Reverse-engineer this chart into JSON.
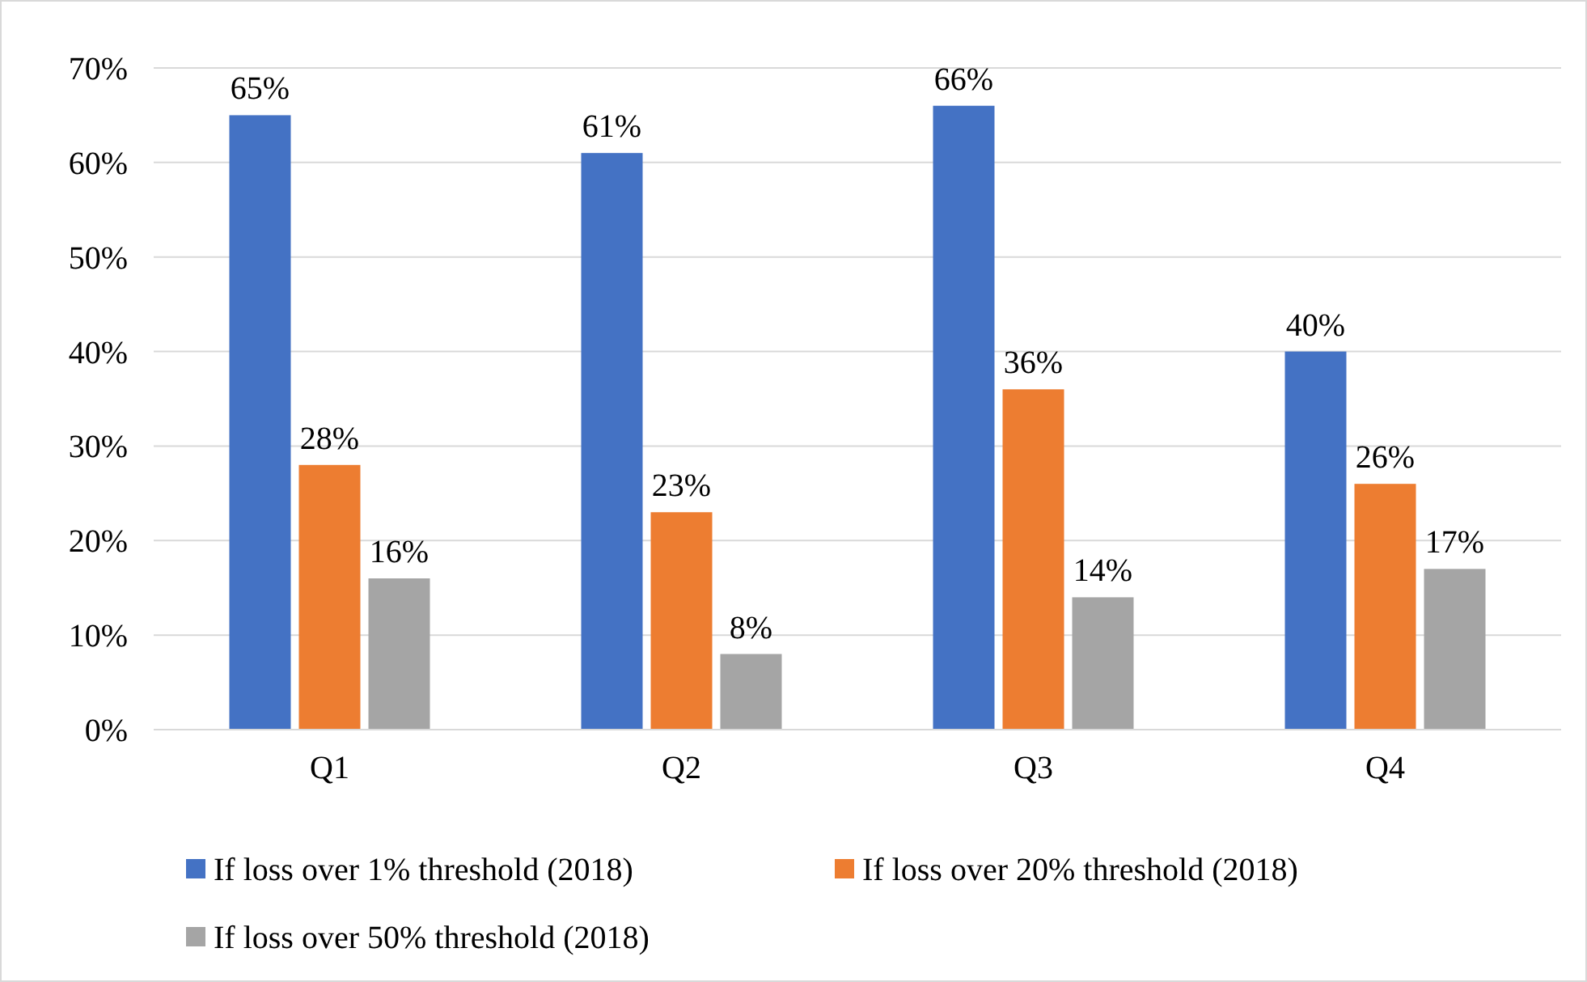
{
  "chart_data": {
    "type": "bar",
    "categories": [
      "Q1",
      "Q2",
      "Q3",
      "Q4"
    ],
    "series": [
      {
        "name": "If loss over 1% threshold (2018)",
        "color": "#4472c4",
        "values": [
          65,
          61,
          66,
          40
        ],
        "value_labels": [
          "65%",
          "61%",
          "66%",
          "40%"
        ]
      },
      {
        "name": "If loss over 20% threshold (2018)",
        "color": "#ed7d31",
        "values": [
          28,
          23,
          36,
          26
        ],
        "value_labels": [
          "28%",
          "23%",
          "36%",
          "26%"
        ]
      },
      {
        "name": "If loss over 50% threshold (2018)",
        "color": "#a5a5a5",
        "values": [
          16,
          8,
          14,
          17
        ],
        "value_labels": [
          "16%",
          "8%",
          "14%",
          "17%"
        ]
      }
    ],
    "ylim": [
      0,
      70
    ],
    "yticks": [
      {
        "value": 0,
        "label": "0%"
      },
      {
        "value": 10,
        "label": "10%"
      },
      {
        "value": 20,
        "label": "20%"
      },
      {
        "value": 30,
        "label": "30%"
      },
      {
        "value": 40,
        "label": "40%"
      },
      {
        "value": 50,
        "label": "50%"
      },
      {
        "value": 60,
        "label": "60%"
      },
      {
        "value": 70,
        "label": "70%"
      }
    ],
    "grid": "y",
    "legend": "bottom"
  }
}
